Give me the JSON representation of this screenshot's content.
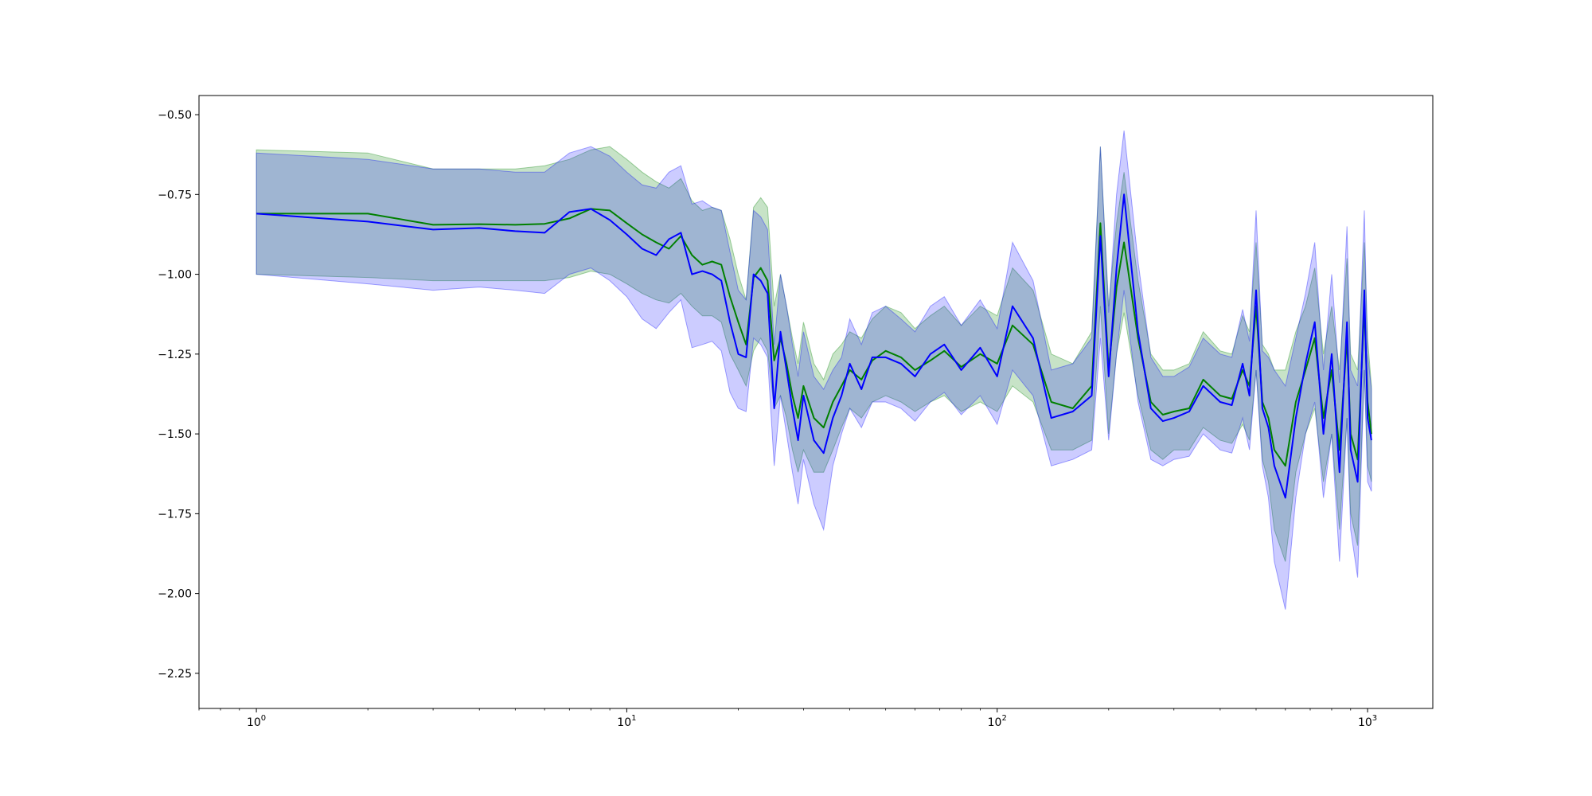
{
  "chart_data": {
    "type": "line",
    "title": "",
    "xlabel": "",
    "ylabel": "",
    "xscale": "log",
    "xlim": [
      0.7,
      1500
    ],
    "ylim": [
      -2.36,
      -0.44
    ],
    "grid": false,
    "legend": "none",
    "x_ticks": [
      {
        "base": "10",
        "exp": "0",
        "value": 1
      },
      {
        "base": "10",
        "exp": "1",
        "value": 10
      },
      {
        "base": "10",
        "exp": "2",
        "value": 100
      },
      {
        "base": "10",
        "exp": "3",
        "value": 1000
      }
    ],
    "y_ticks": [
      {
        "label": "−0.50",
        "value": -0.5
      },
      {
        "label": "−0.75",
        "value": -0.75
      },
      {
        "label": "−1.00",
        "value": -1.0
      },
      {
        "label": "−1.25",
        "value": -1.25
      },
      {
        "label": "−1.50",
        "value": -1.5
      },
      {
        "label": "−1.75",
        "value": -1.75
      },
      {
        "label": "−2.00",
        "value": -2.0
      },
      {
        "label": "−2.25",
        "value": -2.25
      }
    ],
    "series": [
      {
        "color": "#008000",
        "band_color": "#008000",
        "band_alpha": 0.22,
        "x": [
          1,
          2,
          3,
          4,
          5,
          6,
          7,
          8,
          9,
          10,
          11,
          12,
          13,
          14,
          15,
          16,
          17,
          18,
          19,
          20,
          21,
          22,
          23,
          24,
          25,
          26,
          27,
          28,
          29,
          30,
          32,
          34,
          36,
          38,
          40,
          43,
          46,
          50,
          55,
          60,
          66,
          72,
          80,
          90,
          100,
          110,
          125,
          140,
          160,
          180,
          190,
          200,
          210,
          220,
          240,
          260,
          280,
          300,
          330,
          360,
          400,
          430,
          460,
          480,
          500,
          520,
          540,
          560,
          600,
          640,
          680,
          720,
          760,
          800,
          840,
          880,
          900,
          940,
          980,
          1000,
          1024
        ],
        "y": [
          -0.81,
          -0.81,
          -0.845,
          -0.843,
          -0.845,
          -0.842,
          -0.825,
          -0.795,
          -0.8,
          -0.84,
          -0.875,
          -0.9,
          -0.92,
          -0.88,
          -0.94,
          -0.97,
          -0.96,
          -0.97,
          -1.07,
          -1.15,
          -1.22,
          -1.01,
          -0.98,
          -1.02,
          -1.27,
          -1.2,
          -1.28,
          -1.38,
          -1.45,
          -1.35,
          -1.45,
          -1.48,
          -1.4,
          -1.35,
          -1.3,
          -1.33,
          -1.27,
          -1.24,
          -1.26,
          -1.3,
          -1.27,
          -1.24,
          -1.29,
          -1.25,
          -1.28,
          -1.16,
          -1.22,
          -1.4,
          -1.42,
          -1.35,
          -0.84,
          -1.3,
          -1.04,
          -0.9,
          -1.2,
          -1.4,
          -1.44,
          -1.43,
          -1.42,
          -1.33,
          -1.38,
          -1.39,
          -1.3,
          -1.35,
          -1.1,
          -1.4,
          -1.45,
          -1.55,
          -1.6,
          -1.4,
          -1.3,
          -1.2,
          -1.45,
          -1.3,
          -1.55,
          -1.2,
          -1.5,
          -1.58,
          -1.1,
          -1.4,
          -1.5
        ],
        "lower": [
          -1.0,
          -1.01,
          -1.02,
          -1.02,
          -1.02,
          -1.02,
          -1.01,
          -0.99,
          -1.0,
          -1.03,
          -1.06,
          -1.08,
          -1.09,
          -1.06,
          -1.1,
          -1.13,
          -1.13,
          -1.15,
          -1.25,
          -1.3,
          -1.35,
          -1.24,
          -1.2,
          -1.24,
          -1.42,
          -1.38,
          -1.45,
          -1.55,
          -1.62,
          -1.55,
          -1.62,
          -1.62,
          -1.55,
          -1.48,
          -1.42,
          -1.45,
          -1.4,
          -1.38,
          -1.4,
          -1.43,
          -1.4,
          -1.38,
          -1.43,
          -1.4,
          -1.43,
          -1.35,
          -1.4,
          -1.55,
          -1.55,
          -1.52,
          -1.1,
          -1.5,
          -1.25,
          -1.12,
          -1.38,
          -1.55,
          -1.58,
          -1.55,
          -1.55,
          -1.48,
          -1.52,
          -1.53,
          -1.47,
          -1.52,
          -1.3,
          -1.58,
          -1.65,
          -1.8,
          -1.9,
          -1.62,
          -1.5,
          -1.42,
          -1.65,
          -1.5,
          -1.8,
          -1.45,
          -1.75,
          -1.85,
          -1.3,
          -1.6,
          -1.65
        ],
        "upper": [
          -0.61,
          -0.62,
          -0.67,
          -0.67,
          -0.67,
          -0.66,
          -0.64,
          -0.61,
          -0.6,
          -0.64,
          -0.68,
          -0.71,
          -0.73,
          -0.7,
          -0.77,
          -0.8,
          -0.79,
          -0.8,
          -0.89,
          -1.0,
          -1.08,
          -0.79,
          -0.76,
          -0.79,
          -1.1,
          -1.0,
          -1.1,
          -1.2,
          -1.28,
          -1.15,
          -1.28,
          -1.33,
          -1.25,
          -1.22,
          -1.18,
          -1.2,
          -1.14,
          -1.1,
          -1.12,
          -1.17,
          -1.13,
          -1.1,
          -1.16,
          -1.1,
          -1.13,
          -0.98,
          -1.05,
          -1.25,
          -1.28,
          -1.18,
          -0.6,
          -1.1,
          -0.84,
          -0.68,
          -1.02,
          -1.25,
          -1.3,
          -1.3,
          -1.28,
          -1.18,
          -1.24,
          -1.25,
          -1.13,
          -1.18,
          -0.9,
          -1.22,
          -1.25,
          -1.3,
          -1.3,
          -1.18,
          -1.1,
          -0.98,
          -1.25,
          -1.1,
          -1.3,
          -0.95,
          -1.25,
          -1.3,
          -0.9,
          -1.2,
          -1.35
        ]
      },
      {
        "color": "#0000ff",
        "band_color": "#0000ff",
        "band_alpha": 0.2,
        "x": [
          1,
          2,
          3,
          4,
          5,
          6,
          7,
          8,
          9,
          10,
          11,
          12,
          13,
          14,
          15,
          16,
          17,
          18,
          19,
          20,
          21,
          22,
          23,
          24,
          25,
          26,
          27,
          28,
          29,
          30,
          32,
          34,
          36,
          38,
          40,
          43,
          46,
          50,
          55,
          60,
          66,
          72,
          80,
          90,
          100,
          110,
          125,
          140,
          160,
          180,
          190,
          200,
          210,
          220,
          240,
          260,
          280,
          300,
          330,
          360,
          400,
          430,
          460,
          480,
          500,
          520,
          540,
          560,
          600,
          640,
          680,
          720,
          760,
          800,
          840,
          880,
          900,
          940,
          980,
          1000,
          1024
        ],
        "y": [
          -0.81,
          -0.835,
          -0.86,
          -0.855,
          -0.865,
          -0.87,
          -0.805,
          -0.795,
          -0.83,
          -0.875,
          -0.92,
          -0.94,
          -0.89,
          -0.87,
          -1.0,
          -0.99,
          -1.0,
          -1.02,
          -1.15,
          -1.25,
          -1.26,
          -1.0,
          -1.02,
          -1.06,
          -1.42,
          -1.18,
          -1.3,
          -1.42,
          -1.52,
          -1.38,
          -1.52,
          -1.56,
          -1.45,
          -1.38,
          -1.28,
          -1.36,
          -1.26,
          -1.26,
          -1.28,
          -1.32,
          -1.25,
          -1.22,
          -1.3,
          -1.23,
          -1.32,
          -1.1,
          -1.2,
          -1.45,
          -1.43,
          -1.38,
          -0.88,
          -1.32,
          -0.98,
          -0.75,
          -1.18,
          -1.42,
          -1.46,
          -1.45,
          -1.43,
          -1.35,
          -1.4,
          -1.41,
          -1.28,
          -1.38,
          -1.05,
          -1.42,
          -1.48,
          -1.6,
          -1.7,
          -1.45,
          -1.28,
          -1.15,
          -1.5,
          -1.25,
          -1.62,
          -1.15,
          -1.55,
          -1.65,
          -1.05,
          -1.45,
          -1.52
        ],
        "lower": [
          -1.0,
          -1.03,
          -1.05,
          -1.04,
          -1.05,
          -1.06,
          -1.0,
          -0.98,
          -1.02,
          -1.07,
          -1.14,
          -1.17,
          -1.12,
          -1.08,
          -1.23,
          -1.22,
          -1.21,
          -1.24,
          -1.37,
          -1.42,
          -1.43,
          -1.2,
          -1.22,
          -1.26,
          -1.6,
          -1.38,
          -1.5,
          -1.62,
          -1.72,
          -1.58,
          -1.72,
          -1.8,
          -1.6,
          -1.5,
          -1.42,
          -1.48,
          -1.4,
          -1.4,
          -1.42,
          -1.46,
          -1.4,
          -1.37,
          -1.44,
          -1.38,
          -1.47,
          -1.3,
          -1.38,
          -1.6,
          -1.58,
          -1.55,
          -1.2,
          -1.52,
          -1.25,
          -1.05,
          -1.4,
          -1.58,
          -1.6,
          -1.58,
          -1.57,
          -1.5,
          -1.55,
          -1.56,
          -1.45,
          -1.55,
          -1.3,
          -1.6,
          -1.7,
          -1.9,
          -2.05,
          -1.7,
          -1.5,
          -1.4,
          -1.7,
          -1.5,
          -1.9,
          -1.45,
          -1.8,
          -1.95,
          -1.3,
          -1.65,
          -1.68
        ],
        "upper": [
          -0.62,
          -0.64,
          -0.67,
          -0.67,
          -0.68,
          -0.68,
          -0.62,
          -0.6,
          -0.63,
          -0.68,
          -0.72,
          -0.73,
          -0.68,
          -0.66,
          -0.78,
          -0.77,
          -0.79,
          -0.8,
          -0.93,
          -1.05,
          -1.08,
          -0.8,
          -0.82,
          -0.86,
          -1.22,
          -1.0,
          -1.1,
          -1.22,
          -1.32,
          -1.18,
          -1.32,
          -1.36,
          -1.3,
          -1.26,
          -1.14,
          -1.22,
          -1.12,
          -1.1,
          -1.14,
          -1.18,
          -1.1,
          -1.07,
          -1.16,
          -1.08,
          -1.17,
          -0.9,
          -1.02,
          -1.3,
          -1.28,
          -1.2,
          -0.6,
          -1.12,
          -0.75,
          -0.55,
          -0.96,
          -1.26,
          -1.32,
          -1.32,
          -1.29,
          -1.2,
          -1.25,
          -1.26,
          -1.11,
          -1.21,
          -0.8,
          -1.24,
          -1.26,
          -1.3,
          -1.35,
          -1.2,
          -1.06,
          -0.9,
          -1.3,
          -1.0,
          -1.34,
          -0.85,
          -1.3,
          -1.35,
          -0.8,
          -1.25,
          -1.36
        ]
      }
    ]
  }
}
